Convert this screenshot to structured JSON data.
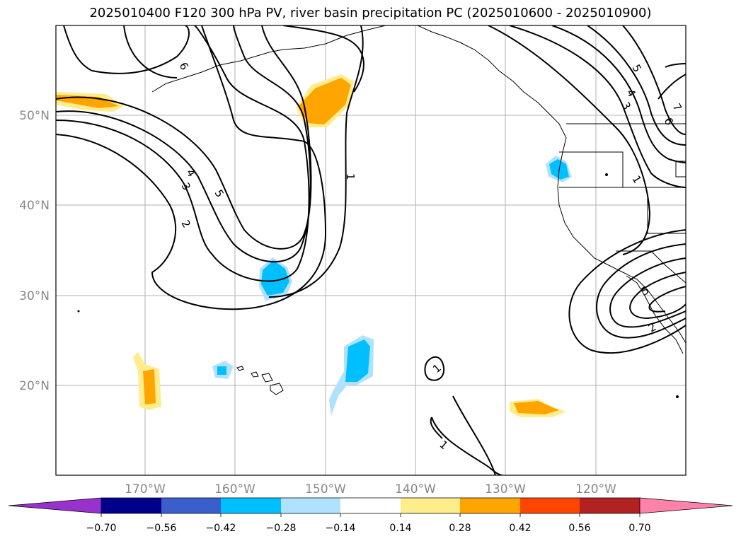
{
  "title": "2025010400 F120 300 hPa PV, river basin precipitation PC (2025010600 - 2025010900)",
  "lat_labels": [
    "50°N",
    "40°N",
    "30°N",
    "20°N"
  ],
  "lon_labels": [
    "170°W",
    "160°W",
    "150°W",
    "140°W",
    "130°W",
    "120°W"
  ],
  "colorbar": {
    "labels": [
      "−0.70",
      "−0.56",
      "−0.42",
      "−0.28",
      "−0.14",
      "0.14",
      "0.28",
      "0.42",
      "0.56",
      "0.70"
    ],
    "colors": [
      "#9932cc",
      "#00008b",
      "#3a5fcd",
      "#00bfff",
      "#b0e2ff",
      "#ffffff",
      "#ffec8b",
      "#ffa500",
      "#ff4500",
      "#b22222",
      "#ff82ab"
    ]
  },
  "contour_labels": [
    "6",
    "5",
    "4",
    "3",
    "2",
    "1",
    "1",
    "1",
    "5",
    "4",
    "3",
    "7",
    "6",
    "1",
    "5",
    "2"
  ],
  "colors": {
    "pos_light": "#ffec8b",
    "pos_mid": "#ffa500",
    "neg_light": "#b0e2ff",
    "neg_mid": "#00bfff",
    "coast": "#000000",
    "grid": "#b0b0b0"
  }
}
